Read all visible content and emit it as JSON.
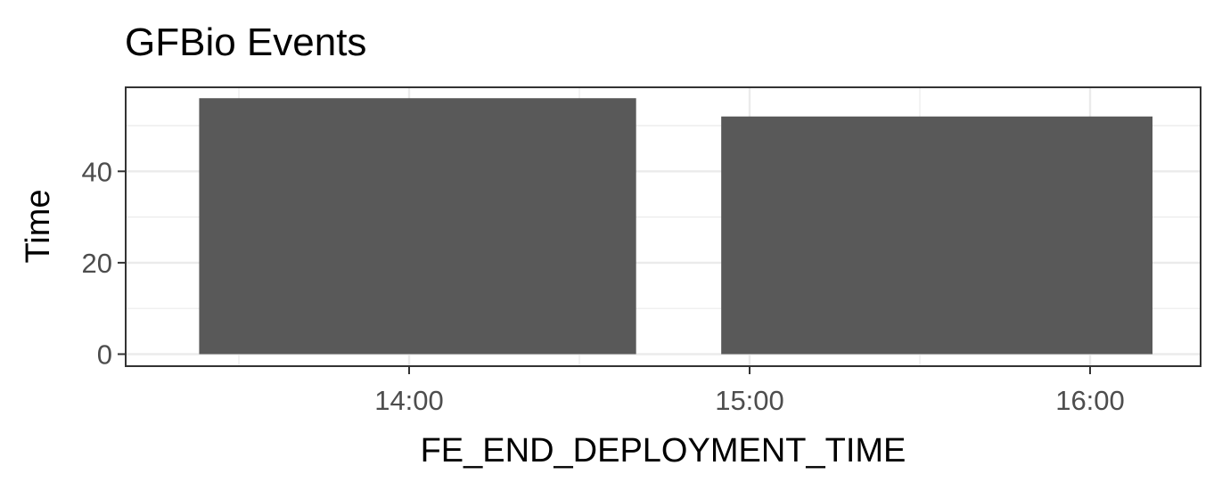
{
  "chart_data": {
    "type": "bar",
    "title": "GFBio Events",
    "xlabel": "FE_END_DEPLOYMENT_TIME",
    "ylabel": "Time",
    "x_type": "time",
    "x_ticks": [
      "14:00",
      "15:00",
      "16:00"
    ],
    "y_ticks": [
      0,
      20,
      40
    ],
    "ylim": [
      0,
      56
    ],
    "grid": true,
    "bar_color": "#595959",
    "bars": [
      {
        "start": "13:23",
        "end": "14:40",
        "value": 56
      },
      {
        "start": "14:55",
        "end": "16:11",
        "value": 52
      }
    ]
  }
}
